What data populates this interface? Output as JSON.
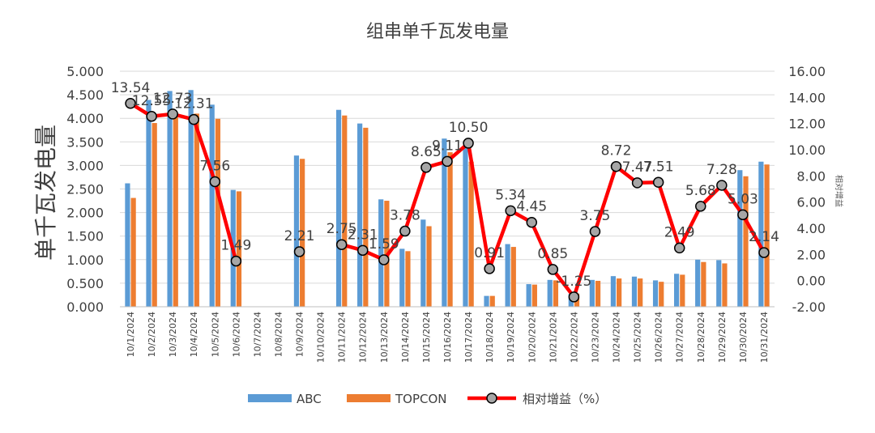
{
  "chart_data": {
    "type": "bar",
    "title": "组串单千瓦发电量",
    "ylabel": "单千瓦发电量",
    "y2label": "相对增益",
    "ylim": [
      0,
      5
    ],
    "y2lim": [
      -2,
      16
    ],
    "yticks": [
      "0.000",
      "0.500",
      "1.000",
      "1.500",
      "2.000",
      "2.500",
      "3.000",
      "3.500",
      "4.000",
      "4.500",
      "5.000"
    ],
    "y2ticks": [
      "-2.00",
      "0.00",
      "2.00",
      "4.00",
      "6.00",
      "8.00",
      "10.00",
      "12.00",
      "14.00",
      "16.00"
    ],
    "categories": [
      "10/1/2024",
      "10/2/2024",
      "10/3/2024",
      "10/4/2024",
      "10/5/2024",
      "10/6/2024",
      "10/7/2024",
      "10/8/2024",
      "10/9/2024",
      "10/10/2024",
      "10/11/2024",
      "10/12/2024",
      "10/13/2024",
      "10/14/2024",
      "10/15/2024",
      "10/16/2024",
      "10/17/2024",
      "10/18/2024",
      "10/19/2024",
      "10/20/2024",
      "10/21/2024",
      "10/22/2024",
      "10/23/2024",
      "10/24/2024",
      "10/25/2024",
      "10/26/2024",
      "10/27/2024",
      "10/28/2024",
      "10/29/2024",
      "10/30/2024",
      "10/31/2024"
    ],
    "series": [
      {
        "name": "ABC",
        "type": "bar",
        "color": "#5B9BD5",
        "values": [
          2.62,
          4.39,
          4.58,
          4.6,
          4.29,
          2.48,
          null,
          null,
          3.21,
          null,
          4.18,
          3.89,
          2.28,
          1.23,
          1.85,
          3.57,
          3.4,
          0.23,
          1.33,
          0.48,
          0.57,
          0.27,
          0.57,
          0.65,
          0.64,
          0.56,
          0.7,
          1.0,
          0.99,
          2.9,
          3.08
        ]
      },
      {
        "name": "TOPCON",
        "type": "bar",
        "color": "#ED7D31",
        "values": [
          2.31,
          3.9,
          4.06,
          4.1,
          3.99,
          2.45,
          null,
          null,
          3.14,
          null,
          4.06,
          3.8,
          2.25,
          1.18,
          1.71,
          3.28,
          3.08,
          0.23,
          1.27,
          0.47,
          0.56,
          0.28,
          0.55,
          0.6,
          0.6,
          0.53,
          0.68,
          0.95,
          0.92,
          2.77,
          3.02
        ]
      },
      {
        "name": "相对增益（%）",
        "type": "line",
        "axis": "right",
        "color": "#FF0000",
        "values": [
          13.54,
          12.55,
          12.73,
          12.31,
          7.56,
          1.49,
          null,
          null,
          2.21,
          null,
          2.75,
          2.31,
          1.59,
          3.78,
          8.65,
          9.11,
          10.5,
          0.91,
          5.34,
          4.45,
          0.85,
          -1.25,
          3.75,
          8.72,
          7.47,
          7.51,
          2.49,
          5.68,
          7.28,
          5.03,
          2.14
        ],
        "labels": [
          "13.54",
          "12.55",
          "12.73",
          "12.31",
          "7.56",
          "1.49",
          "",
          "",
          "2.21",
          "",
          "2.75",
          "2.31",
          "1.59",
          "3.78",
          "8.65",
          "9.11",
          "10.50",
          "0.91",
          "5.34",
          "4.45",
          "0.85",
          "-1.25",
          "3.75",
          "8.72",
          "7.47",
          "7.51",
          "2.49",
          "5.68",
          "7.28",
          "5.03",
          "2.14"
        ]
      }
    ],
    "legend": {
      "position": "bottom",
      "items": [
        "ABC",
        "TOPCON",
        "相对增益（%）"
      ]
    },
    "grid": true,
    "gridColor": "#D9D9D9"
  }
}
